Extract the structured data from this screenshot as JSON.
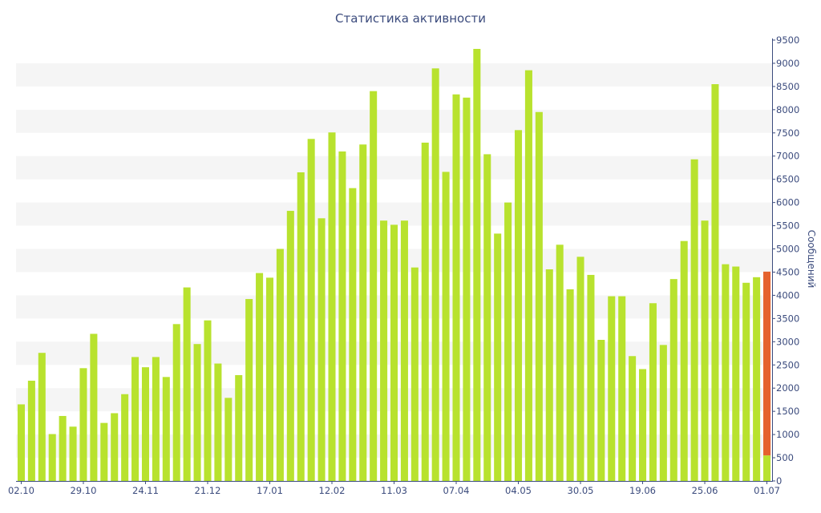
{
  "chart_data": {
    "type": "bar",
    "title": "Статистика активности",
    "ylabel": "Сообщений",
    "ylim": [
      0,
      9500
    ],
    "yticks": [
      0,
      500,
      1000,
      1500,
      2000,
      2500,
      3000,
      3500,
      4000,
      4500,
      5000,
      5500,
      6000,
      6500,
      7000,
      7500,
      8000,
      8500,
      9000,
      9500
    ],
    "y_axis_side": "right",
    "grid": "alternating horizontal bands",
    "xticks": [
      {
        "label": "02.10",
        "index": 0
      },
      {
        "label": "29.10",
        "index": 6
      },
      {
        "label": "24.11",
        "index": 12
      },
      {
        "label": "21.12",
        "index": 18
      },
      {
        "label": "17.01",
        "index": 24
      },
      {
        "label": "12.02",
        "index": 30
      },
      {
        "label": "11.03",
        "index": 36
      },
      {
        "label": "07.04",
        "index": 42
      },
      {
        "label": "04.05",
        "index": 48
      },
      {
        "label": "30.05",
        "index": 54
      },
      {
        "label": "19.06",
        "index": 60
      },
      {
        "label": "25.06",
        "index": 66
      },
      {
        "label": "01.07",
        "index": 72
      }
    ],
    "series": [
      {
        "color": "#b8e22e",
        "values": [
          1650,
          2160,
          2760,
          1010,
          1400,
          1170,
          2430,
          3170,
          1250,
          1460,
          1870,
          2670,
          2450,
          2670,
          2240,
          3380,
          4170,
          2950,
          3460,
          2530,
          1790,
          2280,
          3920,
          4480,
          4380,
          5000,
          5820,
          6650,
          7370,
          5660,
          7510,
          7100,
          6310,
          7250,
          8400,
          5610,
          5520,
          5610,
          4600,
          7290,
          8890,
          6660,
          8330,
          8260,
          9310,
          7040,
          5330,
          6000,
          7560,
          8850,
          7950,
          4560,
          5090,
          4130,
          4830,
          4440,
          3040,
          3980,
          3980,
          2690,
          2410,
          3830,
          2930,
          4350,
          5170,
          6930,
          5610,
          8550,
          4670,
          4620,
          4270,
          4390,
          550
        ]
      },
      {
        "color": "#e5622d",
        "values": [
          0,
          0,
          0,
          0,
          0,
          0,
          0,
          0,
          0,
          0,
          0,
          0,
          0,
          0,
          0,
          0,
          0,
          0,
          0,
          0,
          0,
          0,
          0,
          0,
          0,
          0,
          0,
          0,
          0,
          0,
          0,
          0,
          0,
          0,
          0,
          0,
          0,
          0,
          0,
          0,
          0,
          0,
          0,
          0,
          0,
          0,
          0,
          0,
          0,
          0,
          0,
          0,
          0,
          0,
          0,
          0,
          0,
          0,
          0,
          0,
          0,
          0,
          0,
          0,
          0,
          0,
          0,
          0,
          0,
          0,
          0,
          0,
          3960
        ]
      }
    ],
    "colors": {
      "band": "#f5f5f5",
      "axis": "#3b4b7d",
      "text": "#3b4b7d"
    }
  }
}
